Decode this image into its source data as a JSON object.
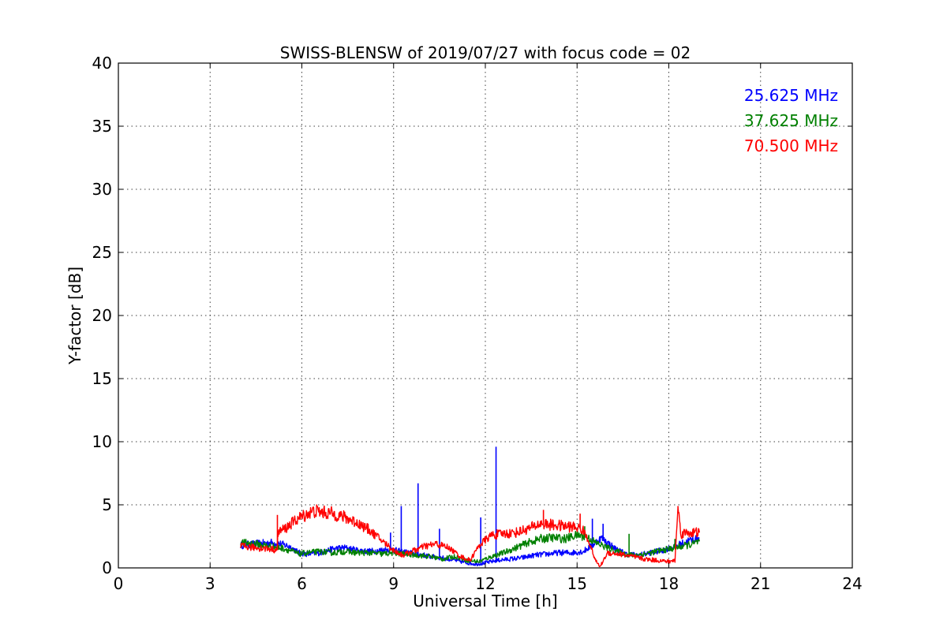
{
  "chart_data": {
    "type": "line",
    "title": "SWISS-BLENSW of 2019/07/27 with focus code = 02",
    "xlabel": "Universal Time [h]",
    "ylabel": "Y-factor [dB]",
    "xlim": [
      0,
      24
    ],
    "ylim": [
      0,
      40
    ],
    "xticks": [
      0,
      3,
      6,
      9,
      12,
      15,
      18,
      21,
      24
    ],
    "yticks": [
      0,
      5,
      10,
      15,
      20,
      25,
      30,
      35,
      40
    ],
    "grid": true,
    "legend_position": "top-right",
    "series": [
      {
        "name": "25.625 MHz",
        "color": "#0000ff",
        "x": [
          4.0,
          4.5,
          5.0,
          5.3,
          5.6,
          5.9,
          6.2,
          6.6,
          7.0,
          7.4,
          7.8,
          8.2,
          8.6,
          8.9,
          9.2,
          9.5,
          9.8,
          10.2,
          10.6,
          11.0,
          11.4,
          11.7,
          12.0,
          12.4,
          12.8,
          13.2,
          13.6,
          14.0,
          14.4,
          14.8,
          15.2,
          15.5,
          15.8,
          16.2,
          16.6,
          17.0,
          17.4,
          17.8,
          18.2,
          18.6,
          19.0
        ],
        "y": [
          1.8,
          1.9,
          2.0,
          1.9,
          1.7,
          1.2,
          1.1,
          1.2,
          1.5,
          1.6,
          1.4,
          1.3,
          1.4,
          1.5,
          1.3,
          1.2,
          1.1,
          0.9,
          0.8,
          0.6,
          0.4,
          0.3,
          0.4,
          0.6,
          0.7,
          0.8,
          1.0,
          1.1,
          1.2,
          1.2,
          1.3,
          1.8,
          2.4,
          1.6,
          1.1,
          1.0,
          1.2,
          1.4,
          1.7,
          2.1,
          2.4
        ],
        "spikes": [
          {
            "x": 8.9,
            "y": 2.8
          },
          {
            "x": 9.25,
            "y": 4.9
          },
          {
            "x": 9.8,
            "y": 6.7
          },
          {
            "x": 10.5,
            "y": 3.1
          },
          {
            "x": 11.85,
            "y": 4.0
          },
          {
            "x": 12.35,
            "y": 9.6
          },
          {
            "x": 15.5,
            "y": 3.9
          },
          {
            "x": 15.85,
            "y": 3.5
          }
        ]
      },
      {
        "name": "37.625 MHz",
        "color": "#008000",
        "x": [
          4.0,
          4.5,
          5.0,
          5.3,
          5.6,
          5.9,
          6.2,
          6.6,
          7.0,
          7.4,
          7.8,
          8.2,
          8.6,
          9.0,
          9.4,
          9.8,
          10.2,
          10.6,
          11.0,
          11.4,
          11.8,
          12.2,
          12.6,
          13.0,
          13.4,
          13.8,
          14.2,
          14.6,
          15.0,
          15.3,
          15.6,
          16.0,
          16.4,
          16.8,
          17.2,
          17.6,
          18.0,
          18.4,
          18.8,
          19.0
        ],
        "y": [
          2.0,
          1.9,
          1.7,
          1.6,
          1.4,
          1.1,
          1.2,
          1.3,
          1.2,
          1.3,
          1.2,
          1.2,
          1.1,
          1.2,
          1.1,
          1.0,
          0.9,
          0.7,
          0.9,
          0.6,
          0.5,
          0.9,
          1.2,
          1.6,
          2.0,
          2.3,
          2.4,
          2.3,
          2.6,
          2.5,
          2.0,
          1.6,
          1.2,
          1.0,
          1.1,
          1.3,
          1.5,
          1.7,
          1.9,
          2.1
        ],
        "spikes": [
          {
            "x": 15.25,
            "y": 3.3
          },
          {
            "x": 16.7,
            "y": 2.7
          },
          {
            "x": 18.2,
            "y": 2.3
          }
        ]
      },
      {
        "name": "70.500 MHz",
        "color": "#ff0000",
        "x": [
          4.0,
          4.5,
          5.0,
          5.2,
          5.21,
          5.5,
          5.8,
          6.1,
          6.4,
          6.7,
          7.0,
          7.4,
          7.8,
          8.2,
          8.6,
          9.0,
          9.3,
          9.6,
          10.0,
          10.4,
          10.8,
          11.2,
          11.5,
          11.8,
          12.2,
          12.6,
          13.0,
          13.4,
          13.8,
          14.2,
          14.6,
          15.0,
          15.2,
          15.4,
          15.6,
          15.75,
          16.0,
          16.4,
          16.8,
          17.2,
          17.6,
          18.0,
          18.2,
          18.3,
          18.4,
          18.6,
          19.0
        ],
        "y": [
          1.7,
          1.6,
          1.5,
          1.4,
          2.8,
          3.2,
          3.8,
          4.2,
          4.5,
          4.4,
          4.3,
          4.0,
          3.6,
          3.0,
          2.2,
          1.4,
          1.0,
          1.3,
          1.7,
          1.9,
          1.6,
          0.9,
          0.6,
          1.8,
          2.6,
          2.7,
          2.8,
          3.1,
          3.5,
          3.4,
          3.3,
          3.2,
          3.0,
          2.0,
          0.6,
          0.1,
          1.2,
          1.1,
          0.9,
          0.7,
          0.6,
          0.5,
          0.6,
          4.8,
          2.7,
          2.8,
          2.8
        ],
        "spikes": [
          {
            "x": 5.2,
            "y": 4.2
          },
          {
            "x": 13.9,
            "y": 4.6
          },
          {
            "x": 15.1,
            "y": 4.3
          },
          {
            "x": 18.3,
            "y": 4.9
          }
        ]
      }
    ]
  }
}
